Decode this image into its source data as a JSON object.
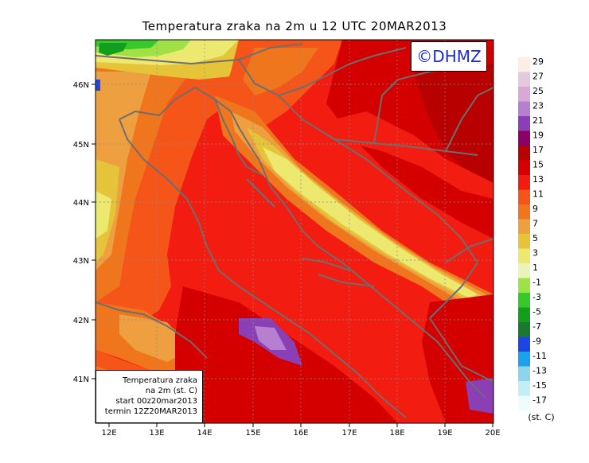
{
  "title": "Temperatura zraka na 2m u 12 UTC 20MAR2013",
  "logo_text": "©DHMZ",
  "info_box": {
    "line1": "Temperatura zraka",
    "line2": "na 2m (st. C)",
    "line3": "start 00z20mar2013",
    "line4": "termin 12Z20MAR2013"
  },
  "colorbar": {
    "unit": "(st. C)",
    "levels": [
      {
        "value": "29",
        "color": "#fdeee4"
      },
      {
        "value": "27",
        "color": "#e4c8de"
      },
      {
        "value": "25",
        "color": "#d8a8d8"
      },
      {
        "value": "23",
        "color": "#b77fd0"
      },
      {
        "value": "21",
        "color": "#8a3fb5"
      },
      {
        "value": "19",
        "color": "#8a0064"
      },
      {
        "value": "17",
        "color": "#b80000"
      },
      {
        "value": "15",
        "color": "#d40000"
      },
      {
        "value": "13",
        "color": "#f21c10"
      },
      {
        "value": "11",
        "color": "#f55519"
      },
      {
        "value": "9",
        "color": "#f0761e"
      },
      {
        "value": "7",
        "color": "#eea040"
      },
      {
        "value": "5",
        "color": "#e6c43a"
      },
      {
        "value": "3",
        "color": "#ece870"
      },
      {
        "value": "1",
        "color": "#e8f4b8"
      },
      {
        "value": "-1",
        "color": "#9ee246"
      },
      {
        "value": "-3",
        "color": "#38c82a"
      },
      {
        "value": "-5",
        "color": "#12a01c"
      },
      {
        "value": "-7",
        "color": "#1a7830"
      },
      {
        "value": "-9",
        "color": "#1e44e6"
      },
      {
        "value": "-11",
        "color": "#1aa2ee"
      },
      {
        "value": "-13",
        "color": "#8ed4ea"
      },
      {
        "value": "-15",
        "color": "#c4eef6"
      },
      {
        "value": "-17",
        "color": "#eefcfc"
      }
    ]
  },
  "axes": {
    "lon_labels": [
      "12E",
      "13E",
      "14E",
      "15E",
      "16E",
      "17E",
      "18E",
      "19E",
      "20E"
    ],
    "lat_labels": [
      "41N",
      "42N",
      "43N",
      "44N",
      "45N",
      "46N"
    ]
  }
}
